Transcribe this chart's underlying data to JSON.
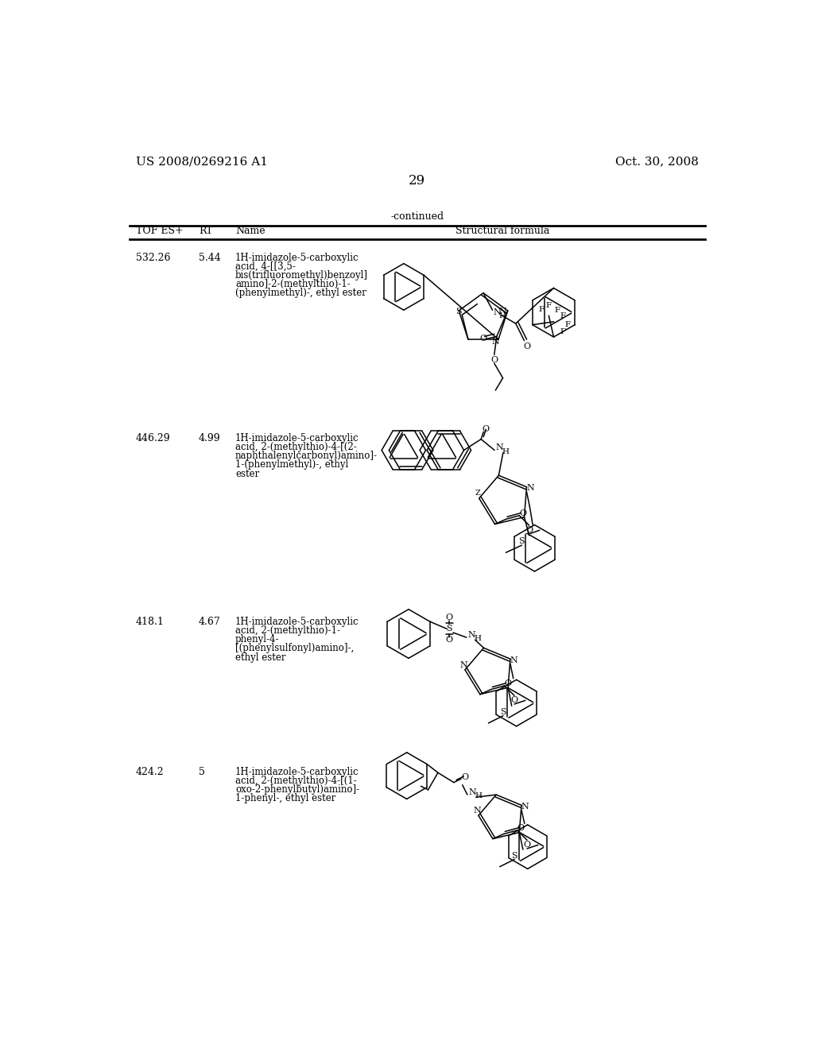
{
  "background_color": "#ffffff",
  "page_number": "29",
  "header_left": "US 2008/0269216 A1",
  "header_right": "Oct. 30, 2008",
  "continued_label": "-continued",
  "table_headers": [
    "TOF ES+",
    "RT",
    "Name",
    "Structural formula"
  ],
  "rows": [
    {
      "tof": "532.26",
      "rt": "5.44",
      "name_lines": [
        "1H-imidazole-5-carboxylic",
        "acid, 4-[[3,5-",
        "bis(trifluoromethyl)benzoyl]",
        "amino]-2-(methylthio)-1-",
        "(phenylmethyl)-, ethyl ester"
      ]
    },
    {
      "tof": "446.29",
      "rt": "4.99",
      "name_lines": [
        "1H-imidazole-5-carboxylic",
        "acid, 2-(methylthio)-4-[(2-",
        "naphthalenylcarbonyl)amino]-",
        "1-(phenylmethyl)-, ethyl",
        "ester"
      ]
    },
    {
      "tof": "418.1",
      "rt": "4.67",
      "name_lines": [
        "1H-imidazole-5-carboxylic",
        "acid, 2-(methylthio)-1-",
        "phenyl-4-",
        "[(phenylsulfonyl)amino]-,",
        "ethyl ester"
      ]
    },
    {
      "tof": "424.2",
      "rt": "5",
      "name_lines": [
        "1H-imidazole-5-carboxylic",
        "acid, 2-(methylthio)-4-[(1-",
        "oxo-2-phenylbutyl)amino]-",
        "1-phenyl-, ethyl ester"
      ]
    }
  ]
}
